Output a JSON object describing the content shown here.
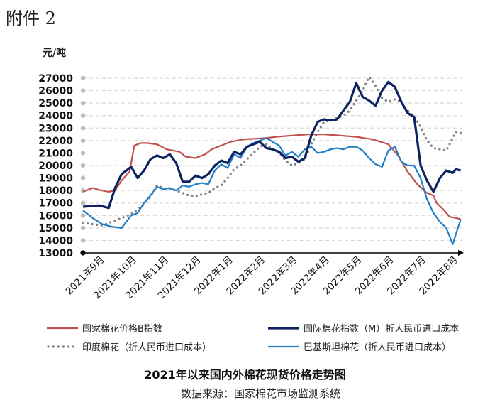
{
  "header": {
    "attachment": "附件 2",
    "unit": "元/吨"
  },
  "title": "2021年以来国内外棉花现货价格走势图",
  "source": "数据来源：国家棉花市场监测系统",
  "colors": {
    "cc_index": "#c0504d",
    "m_index": "#0d2260",
    "india": "#7f7f7f",
    "pakistan": "#1f7fc8",
    "grid": "#d9d9d9",
    "axis": "#000000"
  },
  "chart_data": {
    "type": "line",
    "ylim": [
      13000,
      27000
    ],
    "yticks": [
      13000,
      14000,
      15000,
      16000,
      17000,
      18000,
      19000,
      20000,
      21000,
      22000,
      23000,
      24000,
      25000,
      26000,
      27000
    ],
    "xticks": [
      "2021年9月",
      "2021年10月",
      "2021年11月",
      "2021年12月",
      "2022年1月",
      "2022年2月",
      "2022年3月",
      "2022年4月",
      "2022年5月",
      "2022年6月",
      "2022年7月",
      "2022年8月"
    ],
    "x_units": "months since 2021年9月",
    "grid": "horizontal-dashed",
    "legend_position": "bottom",
    "series": [
      {
        "name": "国家棉花价格B指数",
        "style": "solid",
        "x": [
          0,
          0.3,
          0.5,
          0.8,
          1.0,
          1.2,
          1.45,
          1.6,
          1.8,
          2.0,
          2.3,
          2.6,
          3.0,
          3.2,
          3.5,
          3.8,
          4.0,
          4.3,
          4.6,
          5.0,
          5.4,
          5.7,
          6.0,
          6.5,
          7.0,
          7.5,
          8.0,
          8.5,
          9.0,
          9.5,
          9.8,
          10.1,
          10.4,
          10.7,
          10.9,
          11.0,
          11.2,
          11.4,
          11.6,
          11.75
        ],
        "y": [
          17900,
          18200,
          18050,
          17900,
          18000,
          18800,
          19500,
          21600,
          21800,
          21800,
          21700,
          21300,
          21100,
          20700,
          20600,
          20900,
          21300,
          21600,
          21900,
          22100,
          22150,
          22200,
          22300,
          22400,
          22500,
          22500,
          22400,
          22300,
          22100,
          21700,
          20800,
          19500,
          18500,
          17800,
          17600,
          17000,
          16500,
          15900,
          15800,
          15700
        ]
      },
      {
        "name": "国际棉花指数（M）折人民币进口成本",
        "style": "solid-thick",
        "x": [
          0,
          0.5,
          0.8,
          1.0,
          1.2,
          1.5,
          1.7,
          1.9,
          2.1,
          2.3,
          2.5,
          2.7,
          2.9,
          3.1,
          3.3,
          3.5,
          3.7,
          3.9,
          4.1,
          4.3,
          4.5,
          4.7,
          4.9,
          5.1,
          5.3,
          5.5,
          5.7,
          5.9,
          6.1,
          6.3,
          6.5,
          6.7,
          6.9,
          7.1,
          7.3,
          7.5,
          7.7,
          7.9,
          8.1,
          8.3,
          8.5,
          8.7,
          8.9,
          9.1,
          9.3,
          9.5,
          9.7,
          9.9,
          10.1,
          10.3,
          10.5,
          10.7,
          10.9,
          11.1,
          11.3,
          11.5,
          11.6,
          11.75
        ],
        "y": [
          16700,
          16800,
          16600,
          18200,
          19300,
          19900,
          19000,
          19600,
          20500,
          20800,
          20600,
          20900,
          20200,
          18700,
          18700,
          19200,
          19000,
          19300,
          20000,
          20400,
          20200,
          21100,
          20900,
          21500,
          21700,
          21900,
          21400,
          21300,
          21100,
          20600,
          20700,
          20300,
          20600,
          22400,
          23500,
          23700,
          23600,
          23700,
          24400,
          25100,
          26600,
          25500,
          25200,
          24800,
          26000,
          26700,
          26300,
          25100,
          24200,
          23900,
          20000,
          18800,
          17900,
          19000,
          19600,
          19400,
          19700,
          19600
        ]
      },
      {
        "name": "印度棉花（折人民币进口成本）",
        "style": "dotted",
        "x": [
          0,
          0.3,
          0.6,
          0.9,
          1.2,
          1.5,
          1.7,
          1.9,
          2.1,
          2.3,
          2.5,
          2.7,
          2.9,
          3.1,
          3.3,
          3.5,
          3.7,
          3.9,
          4.1,
          4.3,
          4.5,
          4.7,
          4.9,
          5.1,
          5.3,
          5.5,
          5.7,
          5.9,
          6.1,
          6.3,
          6.5,
          6.7,
          6.9,
          7.1,
          7.3,
          7.5,
          7.7,
          7.9,
          8.1,
          8.3,
          8.5,
          8.7,
          8.9,
          9.1,
          9.3,
          9.5,
          9.7,
          9.9,
          10.1,
          10.3,
          10.5,
          10.7,
          10.9,
          11.1,
          11.3,
          11.5,
          11.6,
          11.75
        ],
        "y": [
          15400,
          15300,
          15200,
          15500,
          15800,
          16100,
          16500,
          16900,
          17500,
          18400,
          18200,
          18100,
          18000,
          17800,
          17600,
          17500,
          17700,
          17800,
          18200,
          18400,
          19000,
          19700,
          20000,
          20500,
          21000,
          21500,
          21700,
          21300,
          21000,
          20400,
          20000,
          20200,
          20500,
          21700,
          22700,
          23500,
          23600,
          23800,
          24000,
          24400,
          25200,
          26000,
          27100,
          26400,
          25400,
          25100,
          25300,
          25100,
          24400,
          23900,
          23100,
          22000,
          21400,
          21300,
          21200,
          22200,
          22700,
          22600
        ]
      },
      {
        "name": "巴基斯坦棉花（折人民币进口成本）",
        "style": "solid",
        "x": [
          0,
          0.3,
          0.6,
          0.9,
          1.2,
          1.5,
          1.7,
          1.9,
          2.1,
          2.3,
          2.5,
          2.7,
          2.9,
          3.1,
          3.3,
          3.5,
          3.7,
          3.9,
          4.1,
          4.3,
          4.5,
          4.7,
          4.9,
          5.1,
          5.3,
          5.5,
          5.7,
          5.9,
          6.1,
          6.3,
          6.5,
          6.7,
          6.9,
          7.1,
          7.3,
          7.5,
          7.7,
          7.9,
          8.1,
          8.3,
          8.5,
          8.7,
          8.9,
          9.1,
          9.3,
          9.5,
          9.7,
          9.9,
          10.1,
          10.3,
          10.5,
          10.7,
          10.9,
          11.1,
          11.3,
          11.5,
          11.6,
          11.75
        ],
        "y": [
          16400,
          15800,
          15300,
          15100,
          15000,
          16000,
          16200,
          17000,
          17600,
          18300,
          18100,
          18200,
          18000,
          18400,
          18300,
          18500,
          18600,
          18500,
          19600,
          20100,
          19800,
          20900,
          20600,
          21500,
          21800,
          22000,
          22200,
          21900,
          21600,
          20800,
          21100,
          20700,
          21300,
          21500,
          21000,
          21100,
          21300,
          21400,
          21300,
          21500,
          21500,
          21200,
          20600,
          20100,
          19900,
          21200,
          21500,
          20300,
          20000,
          20000,
          19000,
          17300,
          16200,
          15500,
          15000,
          13700,
          14500,
          15700
        ]
      }
    ]
  }
}
